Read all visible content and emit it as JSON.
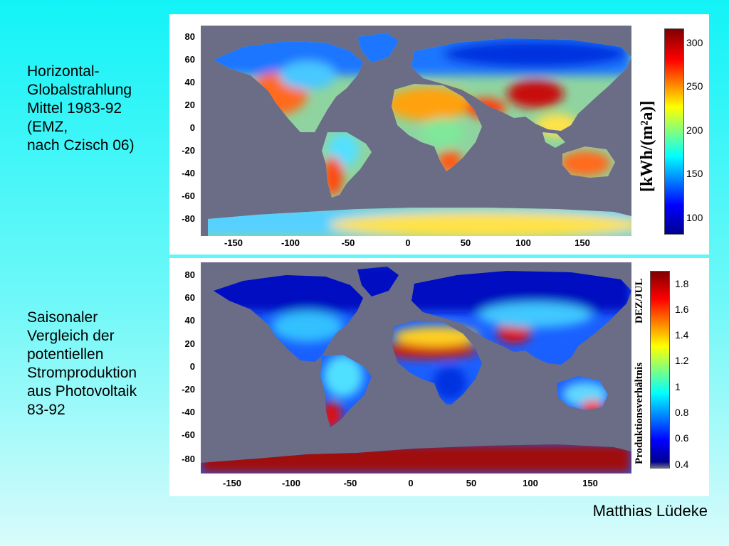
{
  "caption_top": "Horizontal-\nGlobalstrahlung\nMittel 1983-92\n(EMZ,\nnach Czisch 06)",
  "caption_bottom": "Saisonaler\nVergleich der\npotentiellen\nStromproduktion\naus Photovoltaik\n83-92",
  "author": "Matthias Lüdeke",
  "map_top": {
    "lat_ticks": [
      "80",
      "60",
      "40",
      "20",
      "0",
      "-20",
      "-40",
      "-60",
      "-80"
    ],
    "lon_ticks": [
      "-150",
      "-100",
      "-50",
      "0",
      "50",
      "100",
      "150"
    ],
    "colorbar_ticks": [
      "300",
      "250",
      "200",
      "150",
      "100"
    ],
    "unit_label": "[kWh/(m²a)]"
  },
  "map_bottom": {
    "lat_ticks": [
      "80",
      "60",
      "40",
      "20",
      "0",
      "-20",
      "-40",
      "-60",
      "-80"
    ],
    "lon_ticks": [
      "-150",
      "-100",
      "-50",
      "0",
      "50",
      "100",
      "150"
    ],
    "colorbar_ticks": [
      "1.8",
      "1.6",
      "1.4",
      "1.2",
      "1",
      "0.8",
      "0.6",
      "0.4"
    ],
    "ratio_label": "DEZ/JUL",
    "axis_label": "Produktionsverhältnis"
  },
  "colors": {
    "ocean": "#6b6c86",
    "jet": [
      "#00008f",
      "#0000ff",
      "#00ffff",
      "#ffff00",
      "#ff0000",
      "#800000"
    ]
  }
}
